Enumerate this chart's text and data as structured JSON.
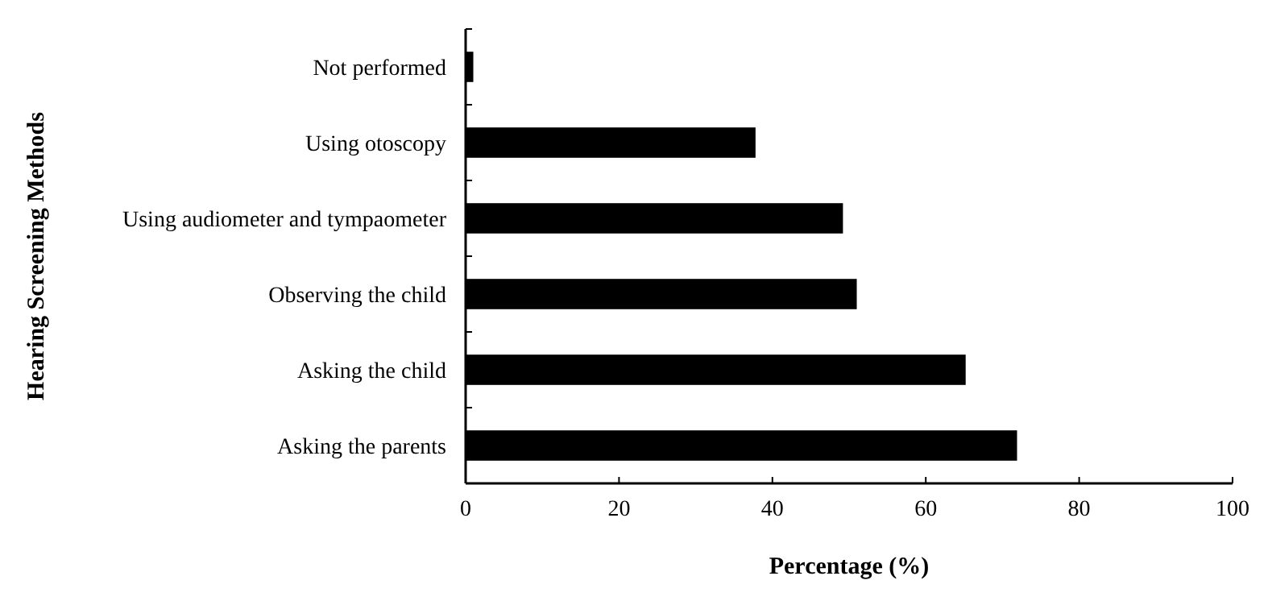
{
  "chart_data": {
    "type": "bar",
    "orientation": "horizontal",
    "categories": [
      "Not performed",
      "Using otoscopy",
      "Using audiometer and tympaometer",
      "Observing the child",
      "Asking the child",
      "Asking the parents"
    ],
    "values": [
      1,
      37.8,
      49.2,
      51,
      65.2,
      71.9
    ],
    "color": "#000000",
    "xlim": [
      0,
      100
    ],
    "xticks": [
      0,
      20,
      40,
      60,
      80,
      100
    ],
    "xlabel": "Percentage (%)",
    "ylabel": "Hearing Screening Methods",
    "grid": false
  }
}
